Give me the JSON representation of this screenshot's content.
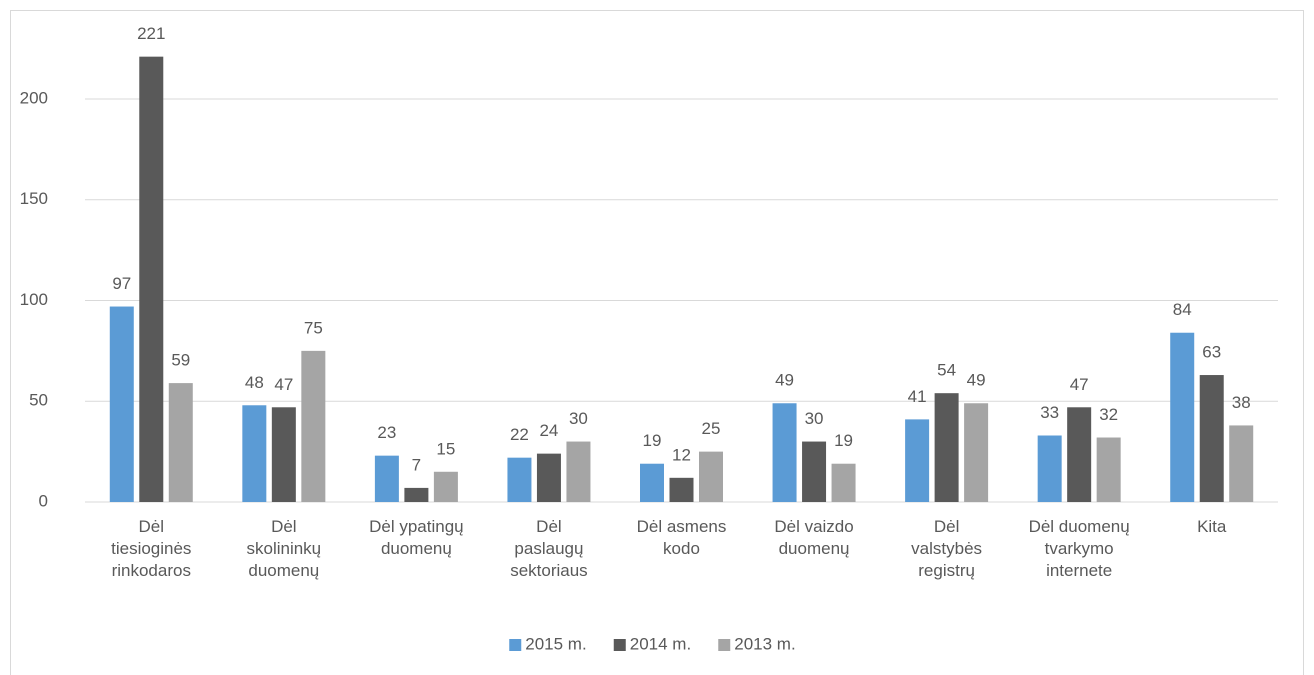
{
  "chart_data": {
    "type": "bar",
    "categories": [
      "Dėl tiesioginės rinkodaros",
      "Dėl skolininkų duomenų",
      "Dėl ypatingų duomenų",
      "Dėl paslaugų sektoriaus",
      "Dėl asmens kodo",
      "Dėl vaizdo duomenų",
      "Dėl valstybės registrų",
      "Dėl duomenų tvarkymo internete",
      "Kita"
    ],
    "series": [
      {
        "name": "2015 m.",
        "color": "#5b9bd5",
        "values": [
          97,
          48,
          23,
          22,
          19,
          49,
          41,
          33,
          84
        ]
      },
      {
        "name": "2014 m.",
        "color": "#595959",
        "values": [
          221,
          47,
          7,
          24,
          12,
          30,
          54,
          47,
          63
        ]
      },
      {
        "name": "2013 m.",
        "color": "#a5a5a5",
        "values": [
          59,
          75,
          15,
          30,
          25,
          19,
          49,
          32,
          38
        ]
      }
    ],
    "ylim": [
      0,
      225
    ],
    "yticks": [
      0,
      50,
      100,
      150,
      200
    ],
    "grid": true,
    "legend": "bottom"
  }
}
